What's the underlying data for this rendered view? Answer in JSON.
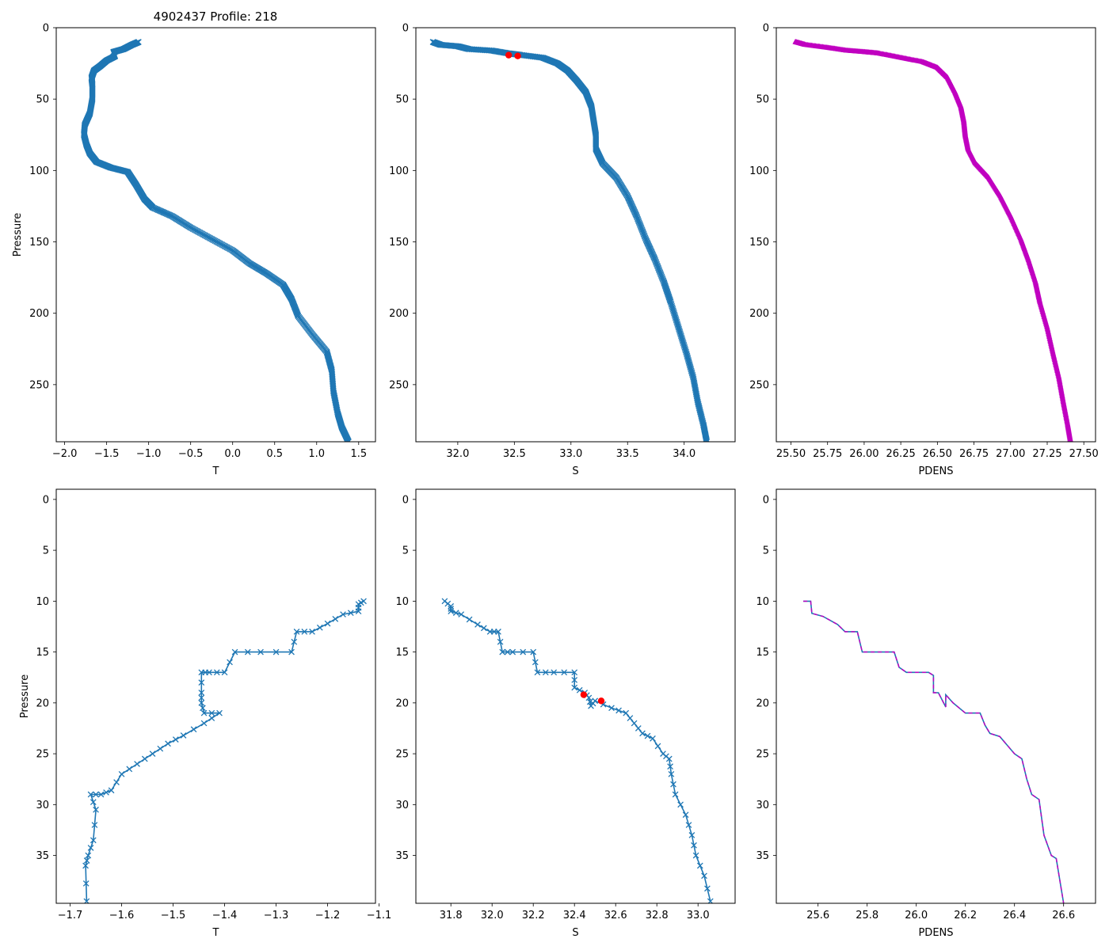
{
  "figure": {
    "title": "4902437 Profile: 218"
  },
  "chart_data": [
    {
      "type": "line",
      "panel": "top-left",
      "series": "T",
      "xlabel": "T",
      "ylabel": "Pressure",
      "xlim": [
        -2.1,
        1.7
      ],
      "ylim": [
        290,
        0
      ],
      "xticks": [
        -2.0,
        -1.5,
        -1.0,
        -0.5,
        0.0,
        0.5,
        1.0,
        1.5
      ],
      "yticks": [
        0,
        50,
        100,
        150,
        200,
        250
      ],
      "points": [
        [
          -1.12,
          10
        ],
        [
          -1.2,
          12
        ],
        [
          -1.3,
          15
        ],
        [
          -1.42,
          17
        ],
        [
          -1.4,
          20
        ],
        [
          -1.5,
          23
        ],
        [
          -1.58,
          27
        ],
        [
          -1.65,
          30
        ],
        [
          -1.68,
          35
        ],
        [
          -1.67,
          40
        ],
        [
          -1.67,
          50
        ],
        [
          -1.7,
          60
        ],
        [
          -1.76,
          68
        ],
        [
          -1.77,
          75
        ],
        [
          -1.74,
          82
        ],
        [
          -1.7,
          88
        ],
        [
          -1.62,
          94
        ],
        [
          -1.45,
          98
        ],
        [
          -1.25,
          101
        ],
        [
          -1.15,
          110
        ],
        [
          -1.05,
          120
        ],
        [
          -0.95,
          126
        ],
        [
          -0.72,
          132
        ],
        [
          -0.5,
          140
        ],
        [
          -0.25,
          148
        ],
        [
          0.0,
          156
        ],
        [
          0.2,
          165
        ],
        [
          0.4,
          172
        ],
        [
          0.6,
          180
        ],
        [
          0.7,
          190
        ],
        [
          0.78,
          202
        ],
        [
          0.95,
          215
        ],
        [
          1.12,
          227
        ],
        [
          1.18,
          240
        ],
        [
          1.2,
          255
        ],
        [
          1.25,
          270
        ],
        [
          1.3,
          280
        ],
        [
          1.38,
          290
        ]
      ]
    },
    {
      "type": "line",
      "panel": "top-middle",
      "series": "S",
      "xlabel": "S",
      "ylabel": "",
      "xlim": [
        31.63,
        34.45
      ],
      "ylim": [
        290,
        0
      ],
      "xticks": [
        32.0,
        32.5,
        33.0,
        33.5,
        34.0
      ],
      "yticks": [
        0,
        50,
        100,
        150,
        200,
        250
      ],
      "points": [
        [
          31.78,
          10
        ],
        [
          31.85,
          12
        ],
        [
          32.0,
          13
        ],
        [
          32.1,
          15
        ],
        [
          32.3,
          16
        ],
        [
          32.45,
          18
        ],
        [
          32.55,
          19
        ],
        [
          32.75,
          21
        ],
        [
          32.88,
          25
        ],
        [
          32.97,
          30
        ],
        [
          33.05,
          37
        ],
        [
          33.13,
          45
        ],
        [
          33.18,
          55
        ],
        [
          33.2,
          65
        ],
        [
          33.22,
          75
        ],
        [
          33.22,
          85
        ],
        [
          33.28,
          95
        ],
        [
          33.4,
          105
        ],
        [
          33.5,
          118
        ],
        [
          33.58,
          132
        ],
        [
          33.66,
          148
        ],
        [
          33.74,
          162
        ],
        [
          33.82,
          178
        ],
        [
          33.88,
          192
        ],
        [
          33.95,
          210
        ],
        [
          34.02,
          228
        ],
        [
          34.08,
          245
        ],
        [
          34.12,
          262
        ],
        [
          34.17,
          278
        ],
        [
          34.2,
          290
        ]
      ],
      "highlight_points": [
        [
          32.45,
          19.2
        ],
        [
          32.53,
          19.8
        ]
      ]
    },
    {
      "type": "line",
      "panel": "top-right",
      "series": "PDENS",
      "xlabel": "PDENS",
      "ylabel": "",
      "xlim": [
        25.4,
        27.58
      ],
      "ylim": [
        290,
        0
      ],
      "xticks": [
        25.5,
        25.75,
        26.0,
        26.25,
        26.5,
        26.75,
        27.0,
        27.25,
        27.5
      ],
      "yticks": [
        0,
        50,
        100,
        150,
        200,
        250
      ],
      "points": [
        [
          25.53,
          10
        ],
        [
          25.6,
          12
        ],
        [
          25.75,
          14
        ],
        [
          25.88,
          16
        ],
        [
          26.0,
          17
        ],
        [
          26.1,
          18
        ],
        [
          26.25,
          21
        ],
        [
          26.4,
          24
        ],
        [
          26.5,
          28
        ],
        [
          26.57,
          35
        ],
        [
          26.62,
          45
        ],
        [
          26.66,
          55
        ],
        [
          26.68,
          65
        ],
        [
          26.69,
          75
        ],
        [
          26.71,
          85
        ],
        [
          26.76,
          95
        ],
        [
          26.85,
          105
        ],
        [
          26.93,
          118
        ],
        [
          27.0,
          132
        ],
        [
          27.07,
          148
        ],
        [
          27.12,
          162
        ],
        [
          27.17,
          178
        ],
        [
          27.2,
          192
        ],
        [
          27.25,
          210
        ],
        [
          27.29,
          228
        ],
        [
          27.33,
          245
        ],
        [
          27.36,
          262
        ],
        [
          27.39,
          278
        ],
        [
          27.41,
          290
        ]
      ]
    },
    {
      "type": "line",
      "panel": "bottom-left",
      "series": "T",
      "xlabel": "T",
      "ylabel": "Pressure",
      "xlim": [
        -1.727,
        -1.107
      ],
      "ylim": [
        39.7,
        -1.0
      ],
      "xticks": [
        -1.7,
        -1.6,
        -1.5,
        -1.4,
        -1.3,
        -1.2,
        -1.1
      ],
      "yticks": [
        0,
        5,
        10,
        15,
        20,
        25,
        30,
        35
      ],
      "points": [
        [
          -1.13,
          10
        ],
        [
          -1.14,
          10.3
        ],
        [
          -1.14,
          11
        ],
        [
          -1.17,
          11.3
        ],
        [
          -1.2,
          12.2
        ],
        [
          -1.23,
          13
        ],
        [
          -1.26,
          13
        ],
        [
          -1.27,
          15
        ],
        [
          -1.33,
          15
        ],
        [
          -1.38,
          15
        ],
        [
          -1.4,
          17
        ],
        [
          -1.43,
          17
        ],
        [
          -1.445,
          17
        ],
        [
          -1.445,
          19
        ],
        [
          -1.445,
          20
        ],
        [
          -1.44,
          21
        ],
        [
          -1.41,
          21
        ],
        [
          -1.44,
          22
        ],
        [
          -1.48,
          23.2
        ],
        [
          -1.51,
          24
        ],
        [
          -1.54,
          25
        ],
        [
          -1.57,
          26
        ],
        [
          -1.6,
          27
        ],
        [
          -1.62,
          28.6
        ],
        [
          -1.64,
          29
        ],
        [
          -1.66,
          29
        ],
        [
          -1.65,
          30.5
        ],
        [
          -1.655,
          33.5
        ],
        [
          -1.665,
          35
        ],
        [
          -1.67,
          36
        ],
        [
          -1.668,
          39.5
        ]
      ]
    },
    {
      "type": "line",
      "panel": "bottom-middle",
      "series": "S",
      "xlabel": "S",
      "ylabel": "",
      "xlim": [
        31.63,
        33.18
      ],
      "ylim": [
        39.7,
        -1.0
      ],
      "xticks": [
        31.8,
        32.0,
        32.2,
        32.4,
        32.6,
        32.8,
        33.0
      ],
      "yticks": [
        0,
        5,
        10,
        15,
        20,
        25,
        30,
        35
      ],
      "points": [
        [
          31.77,
          10
        ],
        [
          31.8,
          10.5
        ],
        [
          31.8,
          11
        ],
        [
          31.85,
          11.3
        ],
        [
          31.93,
          12.3
        ],
        [
          31.99,
          13
        ],
        [
          32.03,
          13
        ],
        [
          32.05,
          15
        ],
        [
          32.1,
          15
        ],
        [
          32.2,
          15
        ],
        [
          32.22,
          17
        ],
        [
          32.3,
          17
        ],
        [
          32.4,
          17
        ],
        [
          32.4,
          18.5
        ],
        [
          32.45,
          19
        ],
        [
          32.47,
          19.5
        ],
        [
          32.48,
          20.3
        ],
        [
          32.5,
          19.8
        ],
        [
          32.58,
          20.5
        ],
        [
          32.65,
          21
        ],
        [
          32.69,
          22
        ],
        [
          32.73,
          23
        ],
        [
          32.78,
          23.5
        ],
        [
          32.83,
          25
        ],
        [
          32.86,
          25.5
        ],
        [
          32.87,
          27
        ],
        [
          32.89,
          29
        ],
        [
          32.94,
          31
        ],
        [
          32.97,
          33
        ],
        [
          32.99,
          35
        ],
        [
          33.03,
          37
        ],
        [
          33.06,
          39.5
        ]
      ],
      "highlight_points": [
        [
          32.445,
          19.2
        ],
        [
          32.53,
          19.8
        ]
      ]
    },
    {
      "type": "line",
      "panel": "bottom-right",
      "series": "PDENS",
      "xlabel": "PDENS",
      "ylabel": "",
      "xlim": [
        25.43,
        26.73
      ],
      "ylim": [
        39.7,
        -1.0
      ],
      "xticks": [
        25.6,
        25.8,
        26.0,
        26.2,
        26.4,
        26.6
      ],
      "yticks": [
        0,
        5,
        10,
        15,
        20,
        25,
        30,
        35
      ],
      "points": [
        [
          25.54,
          10
        ],
        [
          25.57,
          10
        ],
        [
          25.575,
          11.2
        ],
        [
          25.62,
          11.5
        ],
        [
          25.68,
          12.3
        ],
        [
          25.71,
          13
        ],
        [
          25.76,
          13
        ],
        [
          25.78,
          15
        ],
        [
          25.85,
          15
        ],
        [
          25.91,
          15
        ],
        [
          25.93,
          16.5
        ],
        [
          25.96,
          17
        ],
        [
          26.05,
          17
        ],
        [
          26.07,
          17.3
        ],
        [
          26.07,
          19
        ],
        [
          26.09,
          19
        ],
        [
          26.12,
          20.4
        ],
        [
          26.12,
          19.2
        ],
        [
          26.15,
          20
        ],
        [
          26.2,
          21
        ],
        [
          26.26,
          21
        ],
        [
          26.28,
          22.2
        ],
        [
          26.3,
          23
        ],
        [
          26.34,
          23.3
        ],
        [
          26.4,
          25
        ],
        [
          26.43,
          25.5
        ],
        [
          26.45,
          27.5
        ],
        [
          26.47,
          29
        ],
        [
          26.5,
          29.5
        ],
        [
          26.52,
          33
        ],
        [
          26.55,
          35
        ],
        [
          26.57,
          35.3
        ],
        [
          26.6,
          39.7
        ]
      ]
    }
  ],
  "colors": {
    "line": "#1f77b4",
    "density": "#c000c0",
    "highlight": "#ff0000"
  }
}
